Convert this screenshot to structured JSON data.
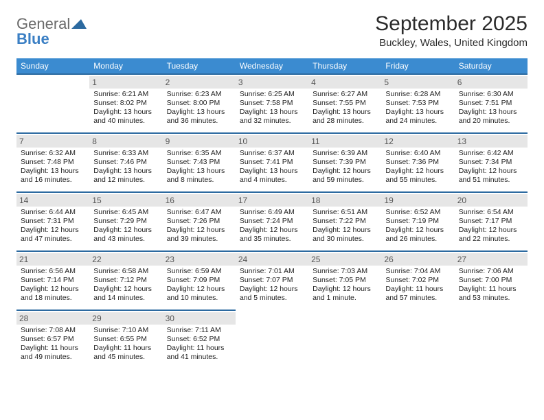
{
  "brand": {
    "word1": "General",
    "word2": "Blue"
  },
  "title": "September 2025",
  "location": "Buckley, Wales, United Kingdom",
  "colors": {
    "header_bg": "#3b8bd0",
    "header_text": "#ffffff",
    "row_border": "#2c6aa0",
    "daynum_bg": "#e6e6e6",
    "daynum_text": "#555555",
    "body_text": "#222222",
    "logo_gray": "#6a6a6a",
    "logo_blue": "#3b7fc4"
  },
  "dow": [
    "Sunday",
    "Monday",
    "Tuesday",
    "Wednesday",
    "Thursday",
    "Friday",
    "Saturday"
  ],
  "weeks": [
    [
      null,
      {
        "n": "1",
        "sr": "Sunrise: 6:21 AM",
        "ss": "Sunset: 8:02 PM",
        "dl": "Daylight: 13 hours and 40 minutes."
      },
      {
        "n": "2",
        "sr": "Sunrise: 6:23 AM",
        "ss": "Sunset: 8:00 PM",
        "dl": "Daylight: 13 hours and 36 minutes."
      },
      {
        "n": "3",
        "sr": "Sunrise: 6:25 AM",
        "ss": "Sunset: 7:58 PM",
        "dl": "Daylight: 13 hours and 32 minutes."
      },
      {
        "n": "4",
        "sr": "Sunrise: 6:27 AM",
        "ss": "Sunset: 7:55 PM",
        "dl": "Daylight: 13 hours and 28 minutes."
      },
      {
        "n": "5",
        "sr": "Sunrise: 6:28 AM",
        "ss": "Sunset: 7:53 PM",
        "dl": "Daylight: 13 hours and 24 minutes."
      },
      {
        "n": "6",
        "sr": "Sunrise: 6:30 AM",
        "ss": "Sunset: 7:51 PM",
        "dl": "Daylight: 13 hours and 20 minutes."
      }
    ],
    [
      {
        "n": "7",
        "sr": "Sunrise: 6:32 AM",
        "ss": "Sunset: 7:48 PM",
        "dl": "Daylight: 13 hours and 16 minutes."
      },
      {
        "n": "8",
        "sr": "Sunrise: 6:33 AM",
        "ss": "Sunset: 7:46 PM",
        "dl": "Daylight: 13 hours and 12 minutes."
      },
      {
        "n": "9",
        "sr": "Sunrise: 6:35 AM",
        "ss": "Sunset: 7:43 PM",
        "dl": "Daylight: 13 hours and 8 minutes."
      },
      {
        "n": "10",
        "sr": "Sunrise: 6:37 AM",
        "ss": "Sunset: 7:41 PM",
        "dl": "Daylight: 13 hours and 4 minutes."
      },
      {
        "n": "11",
        "sr": "Sunrise: 6:39 AM",
        "ss": "Sunset: 7:39 PM",
        "dl": "Daylight: 12 hours and 59 minutes."
      },
      {
        "n": "12",
        "sr": "Sunrise: 6:40 AM",
        "ss": "Sunset: 7:36 PM",
        "dl": "Daylight: 12 hours and 55 minutes."
      },
      {
        "n": "13",
        "sr": "Sunrise: 6:42 AM",
        "ss": "Sunset: 7:34 PM",
        "dl": "Daylight: 12 hours and 51 minutes."
      }
    ],
    [
      {
        "n": "14",
        "sr": "Sunrise: 6:44 AM",
        "ss": "Sunset: 7:31 PM",
        "dl": "Daylight: 12 hours and 47 minutes."
      },
      {
        "n": "15",
        "sr": "Sunrise: 6:45 AM",
        "ss": "Sunset: 7:29 PM",
        "dl": "Daylight: 12 hours and 43 minutes."
      },
      {
        "n": "16",
        "sr": "Sunrise: 6:47 AM",
        "ss": "Sunset: 7:26 PM",
        "dl": "Daylight: 12 hours and 39 minutes."
      },
      {
        "n": "17",
        "sr": "Sunrise: 6:49 AM",
        "ss": "Sunset: 7:24 PM",
        "dl": "Daylight: 12 hours and 35 minutes."
      },
      {
        "n": "18",
        "sr": "Sunrise: 6:51 AM",
        "ss": "Sunset: 7:22 PM",
        "dl": "Daylight: 12 hours and 30 minutes."
      },
      {
        "n": "19",
        "sr": "Sunrise: 6:52 AM",
        "ss": "Sunset: 7:19 PM",
        "dl": "Daylight: 12 hours and 26 minutes."
      },
      {
        "n": "20",
        "sr": "Sunrise: 6:54 AM",
        "ss": "Sunset: 7:17 PM",
        "dl": "Daylight: 12 hours and 22 minutes."
      }
    ],
    [
      {
        "n": "21",
        "sr": "Sunrise: 6:56 AM",
        "ss": "Sunset: 7:14 PM",
        "dl": "Daylight: 12 hours and 18 minutes."
      },
      {
        "n": "22",
        "sr": "Sunrise: 6:58 AM",
        "ss": "Sunset: 7:12 PM",
        "dl": "Daylight: 12 hours and 14 minutes."
      },
      {
        "n": "23",
        "sr": "Sunrise: 6:59 AM",
        "ss": "Sunset: 7:09 PM",
        "dl": "Daylight: 12 hours and 10 minutes."
      },
      {
        "n": "24",
        "sr": "Sunrise: 7:01 AM",
        "ss": "Sunset: 7:07 PM",
        "dl": "Daylight: 12 hours and 5 minutes."
      },
      {
        "n": "25",
        "sr": "Sunrise: 7:03 AM",
        "ss": "Sunset: 7:05 PM",
        "dl": "Daylight: 12 hours and 1 minute."
      },
      {
        "n": "26",
        "sr": "Sunrise: 7:04 AM",
        "ss": "Sunset: 7:02 PM",
        "dl": "Daylight: 11 hours and 57 minutes."
      },
      {
        "n": "27",
        "sr": "Sunrise: 7:06 AM",
        "ss": "Sunset: 7:00 PM",
        "dl": "Daylight: 11 hours and 53 minutes."
      }
    ],
    [
      {
        "n": "28",
        "sr": "Sunrise: 7:08 AM",
        "ss": "Sunset: 6:57 PM",
        "dl": "Daylight: 11 hours and 49 minutes."
      },
      {
        "n": "29",
        "sr": "Sunrise: 7:10 AM",
        "ss": "Sunset: 6:55 PM",
        "dl": "Daylight: 11 hours and 45 minutes."
      },
      {
        "n": "30",
        "sr": "Sunrise: 7:11 AM",
        "ss": "Sunset: 6:52 PM",
        "dl": "Daylight: 11 hours and 41 minutes."
      },
      null,
      null,
      null,
      null
    ]
  ]
}
